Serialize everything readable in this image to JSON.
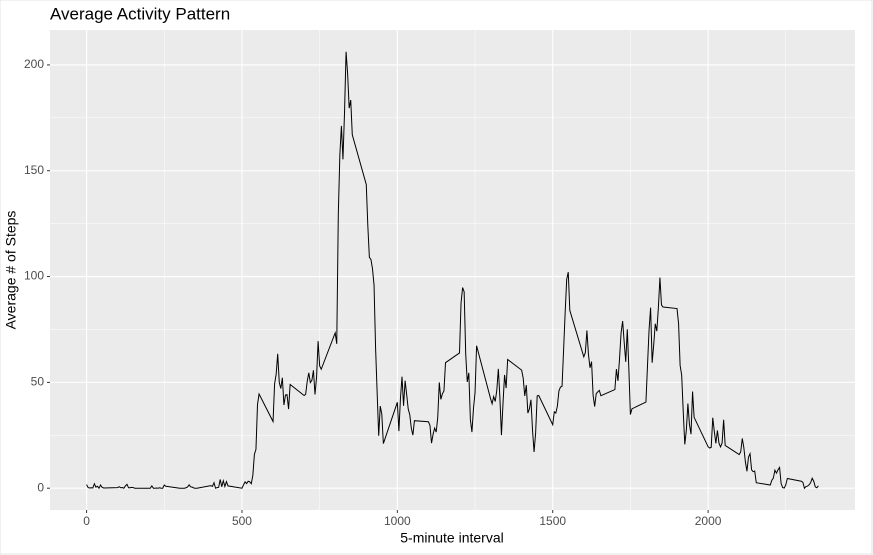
{
  "chart_data": {
    "type": "line",
    "title": "Average Activity Pattern",
    "x_label": "5-minute interval",
    "y_label": "Average # of Steps",
    "color": "#000000",
    "grid": true,
    "xlim": [
      -117.75,
      2472.75
    ],
    "xticks": [
      0,
      500,
      1000,
      1500,
      2000
    ],
    "ylim": [
      -10.3,
      216.5
    ],
    "yticks": [
      0,
      50,
      100,
      150,
      200
    ],
    "x": [
      0,
      5,
      10,
      15,
      20,
      25,
      30,
      35,
      40,
      45,
      50,
      55,
      100,
      105,
      110,
      115,
      120,
      125,
      130,
      135,
      140,
      145,
      150,
      155,
      200,
      205,
      210,
      215,
      220,
      225,
      230,
      235,
      240,
      245,
      250,
      255,
      300,
      305,
      310,
      315,
      320,
      325,
      330,
      335,
      340,
      345,
      350,
      355,
      400,
      405,
      410,
      415,
      420,
      425,
      430,
      435,
      440,
      445,
      450,
      455,
      500,
      505,
      510,
      515,
      520,
      525,
      530,
      535,
      540,
      545,
      550,
      555,
      600,
      605,
      610,
      615,
      620,
      625,
      630,
      635,
      640,
      645,
      650,
      655,
      700,
      705,
      710,
      715,
      720,
      725,
      730,
      735,
      740,
      745,
      750,
      755,
      800,
      805,
      810,
      815,
      820,
      825,
      830,
      835,
      840,
      845,
      850,
      855,
      900,
      905,
      910,
      915,
      920,
      925,
      930,
      935,
      940,
      945,
      950,
      955,
      1000,
      1005,
      1010,
      1015,
      1020,
      1025,
      1030,
      1035,
      1040,
      1045,
      1050,
      1055,
      1100,
      1105,
      1110,
      1115,
      1120,
      1125,
      1130,
      1135,
      1140,
      1145,
      1150,
      1155,
      1200,
      1205,
      1210,
      1215,
      1220,
      1225,
      1230,
      1235,
      1240,
      1245,
      1250,
      1255,
      1300,
      1305,
      1310,
      1315,
      1320,
      1325,
      1330,
      1335,
      1340,
      1345,
      1350,
      1355,
      1400,
      1405,
      1410,
      1415,
      1420,
      1425,
      1430,
      1435,
      1440,
      1445,
      1450,
      1455,
      1500,
      1505,
      1510,
      1515,
      1520,
      1525,
      1530,
      1535,
      1540,
      1545,
      1550,
      1555,
      1600,
      1605,
      1610,
      1615,
      1620,
      1625,
      1630,
      1635,
      1640,
      1645,
      1650,
      1655,
      1700,
      1705,
      1710,
      1715,
      1720,
      1725,
      1730,
      1735,
      1740,
      1745,
      1750,
      1755,
      1800,
      1805,
      1810,
      1815,
      1820,
      1825,
      1830,
      1835,
      1840,
      1845,
      1850,
      1855,
      1900,
      1905,
      1910,
      1915,
      1920,
      1925,
      1930,
      1935,
      1940,
      1945,
      1950,
      1955,
      2000,
      2005,
      2010,
      2015,
      2020,
      2025,
      2030,
      2035,
      2040,
      2045,
      2050,
      2055,
      2100,
      2105,
      2110,
      2115,
      2120,
      2125,
      2130,
      2135,
      2140,
      2145,
      2150,
      2155,
      2200,
      2205,
      2210,
      2215,
      2220,
      2225,
      2230,
      2235,
      2240,
      2245,
      2250,
      2255,
      2300,
      2305,
      2310,
      2315,
      2320,
      2325,
      2330,
      2335,
      2340,
      2345,
      2350,
      2355
    ],
    "values": [
      1.7,
      0.3,
      0.1,
      0.2,
      0.1,
      2.1,
      0.5,
      0.9,
      0,
      1.5,
      0.4,
      0.1,
      0.3,
      0.7,
      0.2,
      0.3,
      0,
      1.1,
      1.8,
      0.2,
      0.2,
      0.4,
      0.3,
      0,
      0,
      0,
      1.1,
      0,
      0,
      0.1,
      0,
      0.2,
      0,
      0,
      1.5,
      0.9,
      0,
      0,
      0,
      0,
      0.2,
      0.6,
      1.6,
      0.6,
      0.5,
      0.1,
      0,
      0,
      1.2,
      0.9,
      2.6,
      0,
      0.3,
      0.4,
      4.1,
      0.7,
      3.5,
      0.8,
      3.1,
      1.1,
      0,
      1.6,
      3.0,
      2.2,
      3.3,
      3.0,
      2.1,
      6.1,
      16.0,
      18.3,
      39.5,
      44.5,
      31.5,
      49.3,
      53.8,
      63.5,
      50,
      47.1,
      52.2,
      39.3,
      44.0,
      44.2,
      37.4,
      49.0,
      43.8,
      44.4,
      50.5,
      54.5,
      49.9,
      51.0,
      55.7,
      44.3,
      52.3,
      69.5,
      57.8,
      56.2,
      73.4,
      68.2,
      129.4,
      157.5,
      171.2,
      155.4,
      177.3,
      206.2,
      195.9,
      179.6,
      183.4,
      167.0,
      143.5,
      124.0,
      109.1,
      108.1,
      103.7,
      96.0,
      66.2,
      45.2,
      24.8,
      38.8,
      35.0,
      21.1,
      40.6,
      27.0,
      42.4,
      52.7,
      38.9,
      50.8,
      44.3,
      37.4,
      34.7,
      28.3,
      25.1,
      31.9,
      31.4,
      29.7,
      21.3,
      25.5,
      28.4,
      26.5,
      33.4,
      50.0,
      42.0,
      44.6,
      46.0,
      59.3,
      63.9,
      87.6,
      94.8,
      92.8,
      63.4,
      50.2,
      54.5,
      32.4,
      26.5,
      37.7,
      45.1,
      67.3,
      42.3,
      39.9,
      43.3,
      41.0,
      46.2,
      56.4,
      42.8,
      25.1,
      40.0,
      53.5,
      47.3,
      60.8,
      55.8,
      52.0,
      43.6,
      48.7,
      35.5,
      37.5,
      41.8,
      27.5,
      17.1,
      26.1,
      43.6,
      43.8,
      30.0,
      36.1,
      35.5,
      38.8,
      46.0,
      47.8,
      48.1,
      65.3,
      82.9,
      98.7,
      102.1,
      84.0,
      62.1,
      64.1,
      74.5,
      63.2,
      56.9,
      59.8,
      43.9,
      38.6,
      44.7,
      45.5,
      46.2,
      43.7,
      46.6,
      56.3,
      50.7,
      61.2,
      73.4,
      79.0,
      68.9,
      59.7,
      75.1,
      56.5,
      34.8,
      37.5,
      40.7,
      58.0,
      74.7,
      85.3,
      59.3,
      67.8,
      77.7,
      74.2,
      85.3,
      99.5,
      86.6,
      85.6,
      84.9,
      77.8,
      58.0,
      53.4,
      36.3,
      20.7,
      27.4,
      40.0,
      30.2,
      25.5,
      45.7,
      33.5,
      19.6,
      19.0,
      19.3,
      33.3,
      26.8,
      21.2,
      27.3,
      21.3,
      19.5,
      21.3,
      32.3,
      20.2,
      15.9,
      17.2,
      23.5,
      19.2,
      12.5,
      8.0,
      14.7,
      16.3,
      8.7,
      7.8,
      8.1,
      2.6,
      1.5,
      3.7,
      4.8,
      8.5,
      7.1,
      8.7,
      9.8,
      2.2,
      0.3,
      0.1,
      1.6,
      4.6,
      3.3,
      2.8,
      0,
      0.8,
      1.0,
      1.6,
      2.6,
      4.7,
      3.3,
      0.6,
      0.2,
      1.1
    ]
  }
}
